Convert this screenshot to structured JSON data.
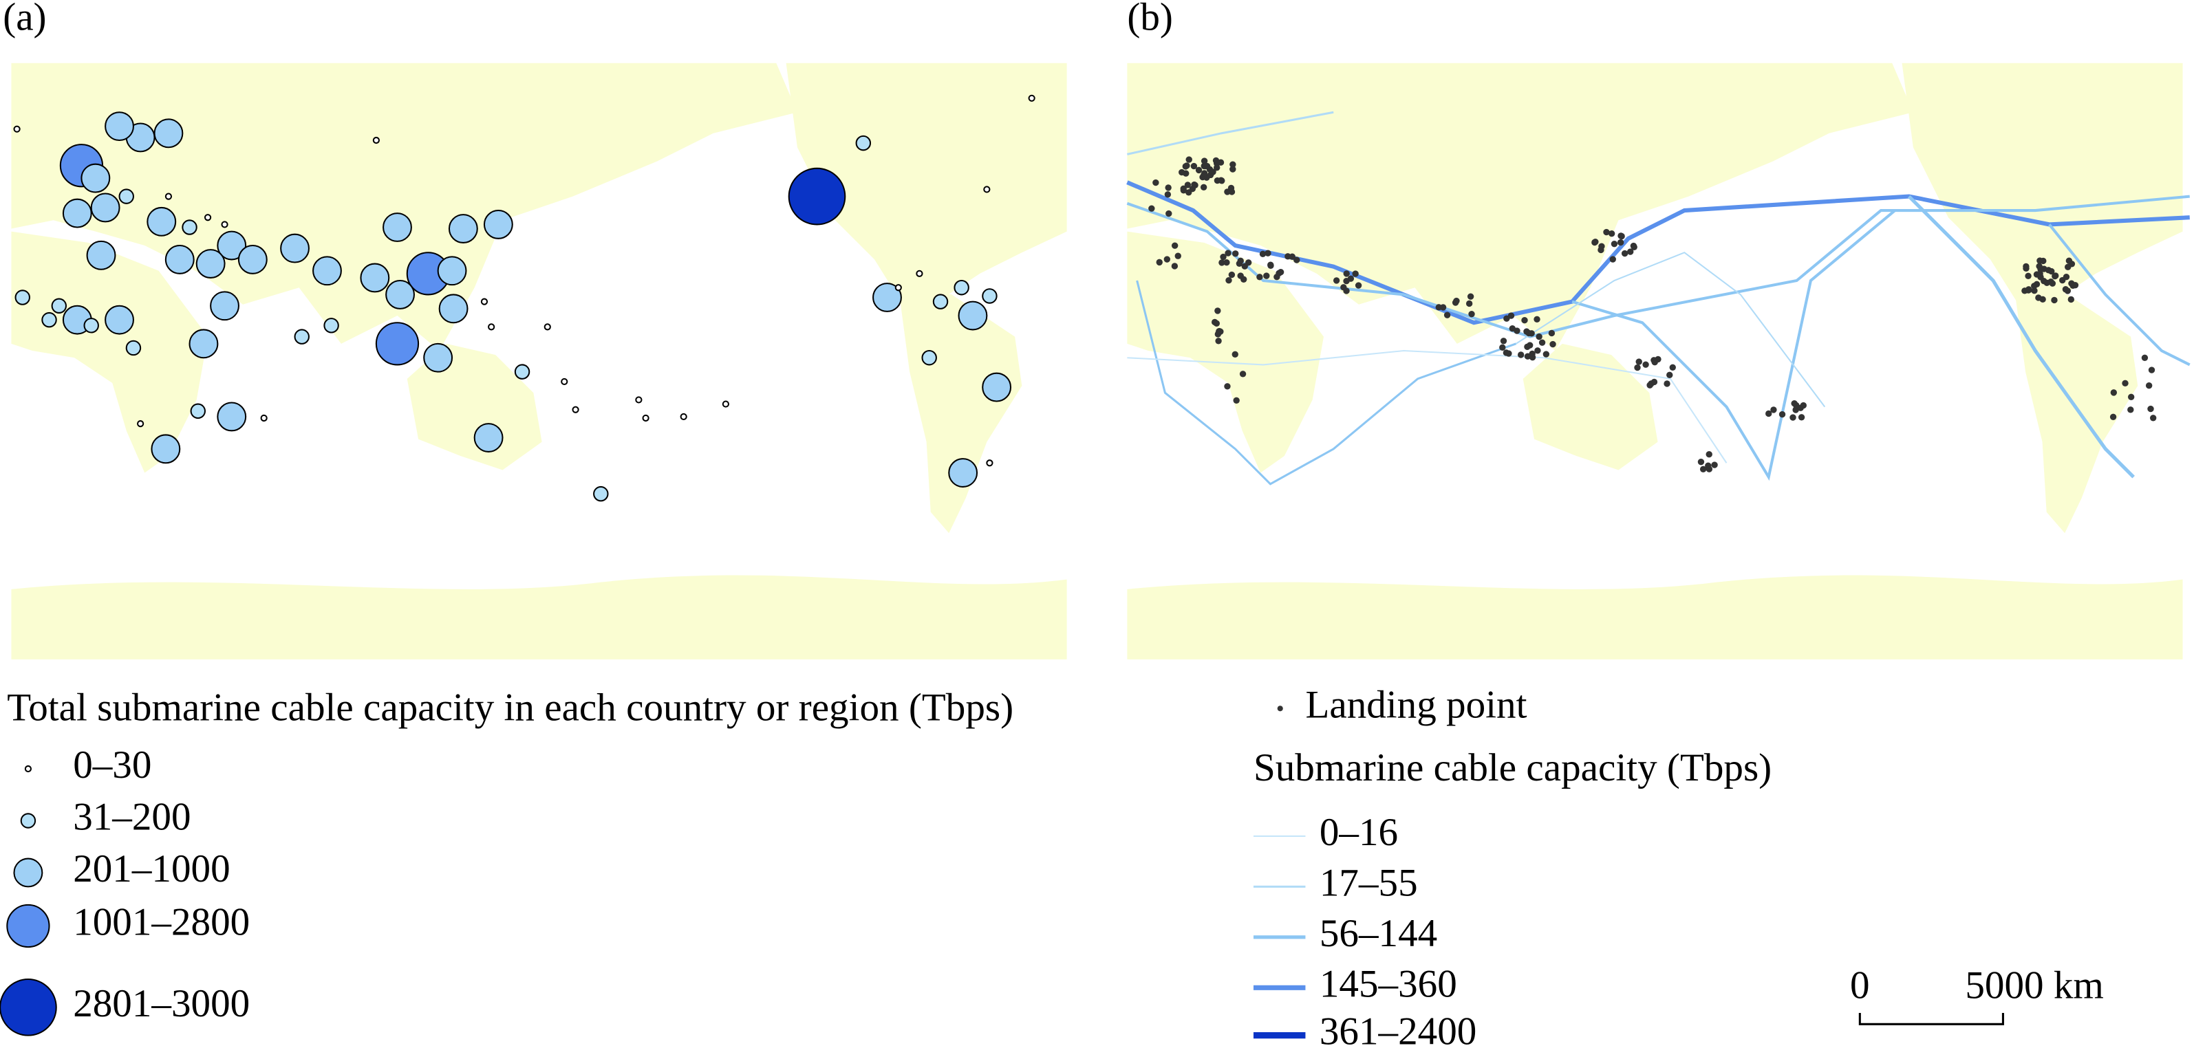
{
  "panels": [
    {
      "label": "(a)"
    },
    {
      "label": "(b)"
    }
  ],
  "legend_a": {
    "title": "Total submarine cable capacity in each country or region (Tbps)",
    "items": [
      "0–30",
      "31–200",
      "201–1000",
      "1001–2800",
      "2801–3000"
    ]
  },
  "legend_b": {
    "landing_point": "Landing point",
    "title": "Submarine cable capacity (Tbps)",
    "items": [
      "0–16",
      "17–55",
      "56–144",
      "145–360",
      "361–2400"
    ]
  },
  "scale_bar": {
    "zero": "0",
    "label": "5000 km"
  }
}
